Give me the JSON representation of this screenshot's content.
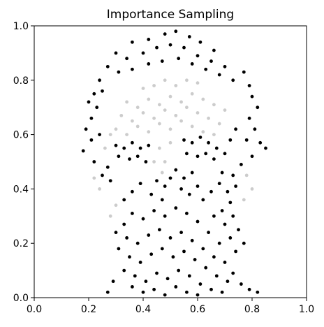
{
  "chart_data": {
    "type": "scatter",
    "title": "Importance Sampling",
    "xlabel": "",
    "ylabel": "",
    "xlim": [
      0.0,
      1.0
    ],
    "ylim": [
      0.0,
      1.0
    ],
    "xticks": [
      "0.0",
      "0.2",
      "0.4",
      "0.6",
      "0.8",
      "1.0"
    ],
    "yticks": [
      "0.0",
      "0.2",
      "0.4",
      "0.6",
      "0.8",
      "1.0"
    ],
    "grid": false,
    "legend": "none",
    "marker_color": "#000000",
    "description_note": "",
    "series": [
      {
        "name": "",
        "points": [
          [
            0.36,
            0.94,
            1
          ],
          [
            0.42,
            0.95,
            1
          ],
          [
            0.48,
            0.97,
            1
          ],
          [
            0.52,
            0.98,
            1
          ],
          [
            0.57,
            0.96,
            1
          ],
          [
            0.61,
            0.94,
            1
          ],
          [
            0.66,
            0.91,
            1
          ],
          [
            0.3,
            0.9,
            1
          ],
          [
            0.34,
            0.88,
            1
          ],
          [
            0.4,
            0.9,
            1
          ],
          [
            0.45,
            0.92,
            1
          ],
          [
            0.5,
            0.93,
            1
          ],
          [
            0.55,
            0.92,
            1
          ],
          [
            0.6,
            0.89,
            1
          ],
          [
            0.65,
            0.87,
            1
          ],
          [
            0.7,
            0.85,
            1
          ],
          [
            0.27,
            0.85,
            1
          ],
          [
            0.31,
            0.83,
            1
          ],
          [
            0.36,
            0.84,
            1
          ],
          [
            0.42,
            0.86,
            1
          ],
          [
            0.47,
            0.87,
            1
          ],
          [
            0.53,
            0.88,
            1
          ],
          [
            0.58,
            0.86,
            1
          ],
          [
            0.63,
            0.84,
            1
          ],
          [
            0.68,
            0.82,
            1
          ],
          [
            0.73,
            0.8,
            1
          ],
          [
            0.77,
            0.83,
            1
          ],
          [
            0.79,
            0.78,
            1
          ],
          [
            0.24,
            0.8,
            1
          ],
          [
            0.22,
            0.75,
            1
          ],
          [
            0.2,
            0.72,
            1
          ],
          [
            0.23,
            0.7,
            1
          ],
          [
            0.25,
            0.76,
            1
          ],
          [
            0.8,
            0.74,
            1
          ],
          [
            0.82,
            0.7,
            1
          ],
          [
            0.79,
            0.66,
            1
          ],
          [
            0.81,
            0.62,
            1
          ],
          [
            0.78,
            0.58,
            1
          ],
          [
            0.83,
            0.57,
            1
          ],
          [
            0.85,
            0.55,
            1
          ],
          [
            0.8,
            0.52,
            1
          ],
          [
            0.76,
            0.49,
            1
          ],
          [
            0.21,
            0.66,
            1
          ],
          [
            0.19,
            0.62,
            1
          ],
          [
            0.21,
            0.58,
            1
          ],
          [
            0.18,
            0.54,
            1
          ],
          [
            0.22,
            0.5,
            1
          ],
          [
            0.24,
            0.6,
            1
          ],
          [
            0.3,
            0.56,
            1
          ],
          [
            0.33,
            0.55,
            1
          ],
          [
            0.36,
            0.57,
            1
          ],
          [
            0.39,
            0.55,
            1
          ],
          [
            0.42,
            0.56,
            1
          ],
          [
            0.31,
            0.52,
            1
          ],
          [
            0.35,
            0.51,
            1
          ],
          [
            0.38,
            0.52,
            1
          ],
          [
            0.41,
            0.5,
            1
          ],
          [
            0.55,
            0.58,
            1
          ],
          [
            0.58,
            0.57,
            1
          ],
          [
            0.61,
            0.59,
            1
          ],
          [
            0.64,
            0.57,
            1
          ],
          [
            0.67,
            0.55,
            1
          ],
          [
            0.56,
            0.53,
            1
          ],
          [
            0.6,
            0.52,
            1
          ],
          [
            0.63,
            0.53,
            1
          ],
          [
            0.66,
            0.51,
            1
          ],
          [
            0.7,
            0.53,
            1
          ],
          [
            0.72,
            0.58,
            1
          ],
          [
            0.74,
            0.62,
            1
          ],
          [
            0.73,
            0.45,
            1
          ],
          [
            0.69,
            0.46,
            1
          ],
          [
            0.27,
            0.48,
            1
          ],
          [
            0.28,
            0.43,
            1
          ],
          [
            0.25,
            0.45,
            1
          ],
          [
            0.52,
            0.47,
            1
          ],
          [
            0.55,
            0.44,
            1
          ],
          [
            0.58,
            0.46,
            1
          ],
          [
            0.54,
            0.4,
            1
          ],
          [
            0.57,
            0.38,
            1
          ],
          [
            0.6,
            0.41,
            1
          ],
          [
            0.62,
            0.36,
            1
          ],
          [
            0.65,
            0.39,
            1
          ],
          [
            0.68,
            0.42,
            1
          ],
          [
            0.71,
            0.39,
            1
          ],
          [
            0.74,
            0.41,
            1
          ],
          [
            0.72,
            0.35,
            1
          ],
          [
            0.69,
            0.32,
            1
          ],
          [
            0.66,
            0.3,
            1
          ],
          [
            0.7,
            0.27,
            1
          ],
          [
            0.73,
            0.3,
            1
          ],
          [
            0.75,
            0.25,
            1
          ],
          [
            0.72,
            0.22,
            1
          ],
          [
            0.68,
            0.2,
            1
          ],
          [
            0.64,
            0.24,
            1
          ],
          [
            0.6,
            0.28,
            1
          ],
          [
            0.56,
            0.31,
            1
          ],
          [
            0.52,
            0.33,
            1
          ],
          [
            0.48,
            0.3,
            1
          ],
          [
            0.44,
            0.32,
            1
          ],
          [
            0.4,
            0.29,
            1
          ],
          [
            0.36,
            0.31,
            1
          ],
          [
            0.33,
            0.27,
            1
          ],
          [
            0.3,
            0.24,
            1
          ],
          [
            0.34,
            0.22,
            1
          ],
          [
            0.38,
            0.2,
            1
          ],
          [
            0.42,
            0.23,
            1
          ],
          [
            0.46,
            0.25,
            1
          ],
          [
            0.5,
            0.22,
            1
          ],
          [
            0.54,
            0.24,
            1
          ],
          [
            0.58,
            0.21,
            1
          ],
          [
            0.62,
            0.18,
            1
          ],
          [
            0.66,
            0.15,
            1
          ],
          [
            0.7,
            0.13,
            1
          ],
          [
            0.74,
            0.17,
            1
          ],
          [
            0.77,
            0.2,
            1
          ],
          [
            0.31,
            0.18,
            1
          ],
          [
            0.35,
            0.15,
            1
          ],
          [
            0.39,
            0.13,
            1
          ],
          [
            0.43,
            0.16,
            1
          ],
          [
            0.47,
            0.18,
            1
          ],
          [
            0.51,
            0.15,
            1
          ],
          [
            0.55,
            0.17,
            1
          ],
          [
            0.59,
            0.14,
            1
          ],
          [
            0.63,
            0.11,
            1
          ],
          [
            0.67,
            0.08,
            1
          ],
          [
            0.71,
            0.06,
            1
          ],
          [
            0.33,
            0.1,
            1
          ],
          [
            0.37,
            0.08,
            1
          ],
          [
            0.41,
            0.06,
            1
          ],
          [
            0.45,
            0.09,
            1
          ],
          [
            0.49,
            0.07,
            1
          ],
          [
            0.53,
            0.1,
            1
          ],
          [
            0.57,
            0.08,
            1
          ],
          [
            0.61,
            0.05,
            1
          ],
          [
            0.65,
            0.03,
            1
          ],
          [
            0.69,
            0.02,
            1
          ],
          [
            0.36,
            0.04,
            1
          ],
          [
            0.4,
            0.02,
            1
          ],
          [
            0.44,
            0.03,
            1
          ],
          [
            0.48,
            0.01,
            1
          ],
          [
            0.52,
            0.04,
            1
          ],
          [
            0.56,
            0.02,
            1
          ],
          [
            0.6,
            0.01,
            1
          ],
          [
            0.29,
            0.06,
            1
          ],
          [
            0.27,
            0.02,
            1
          ],
          [
            0.73,
            0.09,
            1
          ],
          [
            0.76,
            0.05,
            1
          ],
          [
            0.79,
            0.03,
            1
          ],
          [
            0.82,
            0.02,
            1
          ],
          [
            0.45,
            0.43,
            1
          ],
          [
            0.48,
            0.41,
            1
          ],
          [
            0.43,
            0.38,
            1
          ],
          [
            0.47,
            0.36,
            1
          ],
          [
            0.39,
            0.42,
            1
          ],
          [
            0.36,
            0.39,
            1
          ],
          [
            0.33,
            0.36,
            1
          ],
          [
            0.5,
            0.44,
            1
          ],
          [
            0.34,
            0.72,
            0.2
          ],
          [
            0.38,
            0.7,
            0.2
          ],
          [
            0.42,
            0.73,
            0.2
          ],
          [
            0.46,
            0.71,
            0.2
          ],
          [
            0.5,
            0.74,
            0.2
          ],
          [
            0.54,
            0.72,
            0.2
          ],
          [
            0.58,
            0.75,
            0.2
          ],
          [
            0.62,
            0.73,
            0.2
          ],
          [
            0.66,
            0.71,
            0.2
          ],
          [
            0.7,
            0.69,
            0.2
          ],
          [
            0.32,
            0.67,
            0.2
          ],
          [
            0.36,
            0.65,
            0.2
          ],
          [
            0.4,
            0.68,
            0.2
          ],
          [
            0.44,
            0.66,
            0.2
          ],
          [
            0.48,
            0.69,
            0.2
          ],
          [
            0.52,
            0.67,
            0.2
          ],
          [
            0.56,
            0.7,
            0.2
          ],
          [
            0.6,
            0.68,
            0.2
          ],
          [
            0.64,
            0.66,
            0.2
          ],
          [
            0.68,
            0.64,
            0.2
          ],
          [
            0.3,
            0.62,
            0.2
          ],
          [
            0.34,
            0.6,
            0.2
          ],
          [
            0.38,
            0.63,
            0.2
          ],
          [
            0.42,
            0.61,
            0.2
          ],
          [
            0.46,
            0.64,
            0.2
          ],
          [
            0.5,
            0.62,
            0.2
          ],
          [
            0.54,
            0.65,
            0.2
          ],
          [
            0.58,
            0.63,
            0.2
          ],
          [
            0.62,
            0.61,
            0.2
          ],
          [
            0.66,
            0.6,
            0.2
          ],
          [
            0.44,
            0.78,
            0.2
          ],
          [
            0.48,
            0.8,
            0.2
          ],
          [
            0.52,
            0.78,
            0.2
          ],
          [
            0.56,
            0.8,
            0.2
          ],
          [
            0.4,
            0.77,
            0.2
          ],
          [
            0.6,
            0.79,
            0.2
          ],
          [
            0.46,
            0.55,
            0.2
          ],
          [
            0.48,
            0.5,
            0.2
          ],
          [
            0.5,
            0.57,
            0.2
          ],
          [
            0.47,
            0.46,
            0.2
          ],
          [
            0.44,
            0.5,
            0.2
          ],
          [
            0.26,
            0.55,
            0.2
          ],
          [
            0.28,
            0.6,
            0.2
          ],
          [
            0.78,
            0.45,
            0.2
          ],
          [
            0.8,
            0.4,
            0.2
          ],
          [
            0.77,
            0.36,
            0.2
          ],
          [
            0.24,
            0.4,
            0.2
          ],
          [
            0.22,
            0.44,
            0.2
          ],
          [
            0.3,
            0.34,
            0.2
          ],
          [
            0.28,
            0.3,
            0.2
          ]
        ]
      }
    ]
  }
}
